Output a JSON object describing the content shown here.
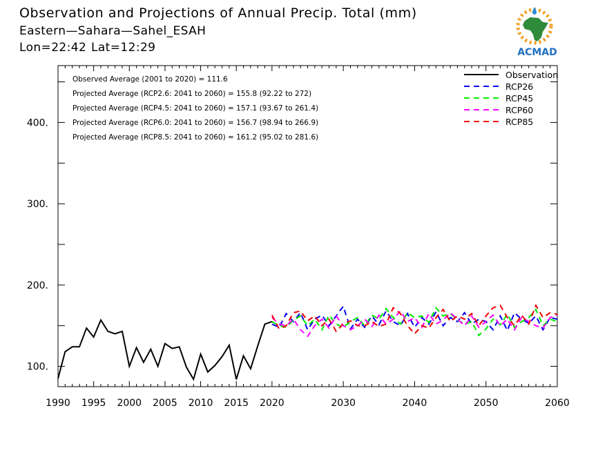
{
  "header": {
    "title": "Observation and Projections of Annual Precip. Total (mm)",
    "region": "Eastern—Sahara—Sahel_ESAH",
    "coords": "Lon=22:42   Lat=12:29"
  },
  "logo": {
    "text": "ACMAD",
    "icon": "africa-sun-logo"
  },
  "chart_data": {
    "type": "line",
    "title": "Observation and Projections of Annual Precip. Total (mm)",
    "xlim": [
      1990,
      2060
    ],
    "ylim": [
      75,
      470
    ],
    "x_ticks": [
      "1990",
      "1995",
      "2000",
      "2005",
      "2010",
      "2015",
      "2020",
      "2030",
      "2040",
      "2050",
      "2060"
    ],
    "x_tick_values": [
      1990,
      1995,
      2000,
      2005,
      2010,
      2015,
      2020,
      2030,
      2040,
      2050,
      2060
    ],
    "y_ticks": [
      "100.",
      "200.",
      "300.",
      "400."
    ],
    "y_tick_values": [
      100,
      200,
      300,
      400
    ],
    "annotations": [
      "Observed Average (2001 to 2020) = 111.6",
      "Projected Average (RCP2.6: 2041 to 2060) = 155.8 (92.22 to 272)",
      "Projected Average (RCP4.5: 2041 to 2060) = 157.1 (93.67 to 261.4)",
      "Projected Average (RCP6.0: 2041 to 2060) = 156.7 (98.94 to 266.9)",
      "Projected Average (RCP8.5: 2041 to 2060) = 161.2 (95.02 to 281.6)"
    ],
    "legend_position": "top-right",
    "series": [
      {
        "name": "Observation",
        "color": "#000000",
        "style": "solid",
        "x": [
          1990,
          1991,
          1992,
          1993,
          1994,
          1995,
          1996,
          1997,
          1998,
          1999,
          2000,
          2001,
          2002,
          2003,
          2004,
          2005,
          2006,
          2007,
          2008,
          2009,
          2010,
          2011,
          2012,
          2013,
          2014,
          2015,
          2016,
          2017,
          2018,
          2019,
          2020
        ],
        "values": [
          85,
          118,
          124,
          124,
          147,
          136,
          157,
          143,
          140,
          143,
          100,
          123,
          105,
          121,
          100,
          128,
          122,
          124,
          99,
          84,
          115,
          93,
          101,
          112,
          126,
          84,
          113,
          97,
          125,
          152,
          155
        ]
      },
      {
        "name": "RCP26",
        "color": "#0000ee",
        "style": "dashed",
        "x": [
          2020,
          2021,
          2022,
          2023,
          2024,
          2025,
          2026,
          2027,
          2028,
          2029,
          2030,
          2031,
          2032,
          2033,
          2034,
          2035,
          2036,
          2037,
          2038,
          2039,
          2040,
          2041,
          2042,
          2043,
          2044,
          2045,
          2046,
          2047,
          2048,
          2049,
          2050,
          2051,
          2052,
          2053,
          2054,
          2055,
          2056,
          2057,
          2058,
          2059,
          2060
        ],
        "values": [
          152,
          148,
          165,
          155,
          166,
          145,
          158,
          163,
          150,
          162,
          174,
          146,
          158,
          148,
          162,
          151,
          168,
          155,
          150,
          165,
          148,
          160,
          152,
          167,
          150,
          160,
          155,
          166,
          152,
          158,
          155,
          145,
          162,
          144,
          166,
          158,
          153,
          162,
          145,
          160,
          158
        ]
      },
      {
        "name": "RCP45",
        "color": "#00ee00",
        "style": "dashed",
        "x": [
          2020,
          2021,
          2022,
          2023,
          2024,
          2025,
          2026,
          2027,
          2028,
          2029,
          2030,
          2031,
          2032,
          2033,
          2034,
          2035,
          2036,
          2037,
          2038,
          2039,
          2040,
          2041,
          2042,
          2043,
          2044,
          2045,
          2046,
          2047,
          2048,
          2049,
          2050,
          2051,
          2052,
          2053,
          2054,
          2055,
          2056,
          2057,
          2058,
          2059,
          2060
        ],
        "values": [
          155,
          150,
          148,
          157,
          162,
          150,
          158,
          145,
          163,
          152,
          148,
          155,
          160,
          150,
          163,
          158,
          171,
          160,
          152,
          166,
          160,
          162,
          154,
          172,
          162,
          165,
          157,
          152,
          155,
          138,
          146,
          158,
          151,
          164,
          148,
          155,
          160,
          170,
          150,
          158,
          155
        ]
      },
      {
        "name": "RCP60",
        "color": "#ff00ff",
        "style": "dashed",
        "x": [
          2020,
          2021,
          2022,
          2023,
          2024,
          2025,
          2026,
          2027,
          2028,
          2029,
          2030,
          2031,
          2032,
          2033,
          2034,
          2035,
          2036,
          2037,
          2038,
          2039,
          2040,
          2041,
          2042,
          2043,
          2044,
          2045,
          2046,
          2047,
          2048,
          2049,
          2050,
          2051,
          2052,
          2053,
          2054,
          2055,
          2056,
          2057,
          2058,
          2059,
          2060
        ],
        "values": [
          160,
          152,
          150,
          158,
          145,
          137,
          150,
          158,
          147,
          162,
          150,
          145,
          150,
          158,
          149,
          163,
          152,
          158,
          168,
          155,
          160,
          148,
          165,
          152,
          157,
          166,
          158,
          150,
          162,
          148,
          155,
          163,
          150,
          158,
          145,
          160,
          155,
          150,
          147,
          160,
          163
        ]
      },
      {
        "name": "RCP85",
        "color": "#ee0000",
        "style": "dashed",
        "x": [
          2020,
          2021,
          2022,
          2023,
          2024,
          2025,
          2026,
          2027,
          2028,
          2029,
          2030,
          2031,
          2032,
          2033,
          2034,
          2035,
          2036,
          2037,
          2038,
          2039,
          2040,
          2041,
          2042,
          2043,
          2044,
          2045,
          2046,
          2047,
          2048,
          2049,
          2050,
          2051,
          2052,
          2053,
          2054,
          2055,
          2056,
          2057,
          2058,
          2059,
          2060
        ],
        "values": [
          163,
          146,
          150,
          166,
          168,
          156,
          162,
          150,
          158,
          143,
          152,
          156,
          150,
          150,
          155,
          149,
          152,
          172,
          165,
          150,
          140,
          150,
          147,
          160,
          170,
          155,
          162,
          158,
          165,
          150,
          162,
          172,
          175,
          160,
          150,
          163,
          152,
          175,
          160,
          166,
          164
        ]
      }
    ]
  }
}
